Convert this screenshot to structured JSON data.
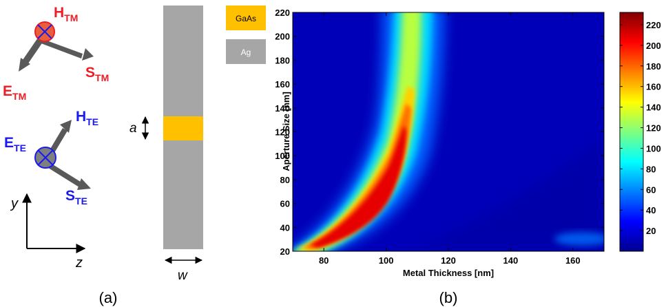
{
  "panel_a": {
    "label": "(a)",
    "tm": {
      "h_main": "H",
      "h_sub": "TM",
      "s_main": "S",
      "s_sub": "TM",
      "e_main": "E",
      "e_sub": "TM",
      "color": "#ee1c25"
    },
    "te": {
      "h_main": "H",
      "h_sub": "TE",
      "e_main": "E",
      "e_sub": "TE",
      "s_main": "S",
      "s_sub": "TE",
      "color": "#1a1aee"
    },
    "axes": {
      "y": "y",
      "z": "z"
    },
    "structure": {
      "aperture_label": "a",
      "width_label": "w",
      "metal_color": "#a6a6a6",
      "aperture_color": "#ffc000"
    },
    "legend": [
      {
        "label": "GaAs",
        "color": "#ffc000"
      },
      {
        "label": "Ag",
        "color": "#a6a6a6"
      }
    ]
  },
  "panel_b": {
    "label": "(b)",
    "chart_data": {
      "type": "heatmap",
      "xlabel": "Metal Thickness [nm]",
      "ylabel": "Aperture Size [nm]",
      "xlim": [
        70,
        170
      ],
      "ylim": [
        20,
        220
      ],
      "x_ticks": [
        80,
        100,
        120,
        140,
        160
      ],
      "y_ticks": [
        20,
        40,
        60,
        80,
        100,
        120,
        140,
        160,
        180,
        200,
        220
      ],
      "colorbar": {
        "min": 0,
        "max": 232,
        "ticks": [
          20,
          40,
          60,
          80,
          100,
          120,
          140,
          160,
          180,
          200,
          220
        ],
        "colormap": "jet"
      },
      "resonance_ridge": [
        {
          "x": 71,
          "y": 20,
          "value": 160
        },
        {
          "x": 80,
          "y": 30,
          "value": 195
        },
        {
          "x": 90,
          "y": 44,
          "value": 215
        },
        {
          "x": 100,
          "y": 62,
          "value": 225
        },
        {
          "x": 105,
          "y": 78,
          "value": 215
        },
        {
          "x": 109,
          "y": 100,
          "value": 195
        },
        {
          "x": 112,
          "y": 120,
          "value": 175
        },
        {
          "x": 114,
          "y": 140,
          "value": 150
        },
        {
          "x": 115,
          "y": 160,
          "value": 130
        },
        {
          "x": 116,
          "y": 180,
          "value": 105
        },
        {
          "x": 117,
          "y": 200,
          "value": 100
        },
        {
          "x": 117,
          "y": 220,
          "value": 100
        }
      ]
    }
  }
}
